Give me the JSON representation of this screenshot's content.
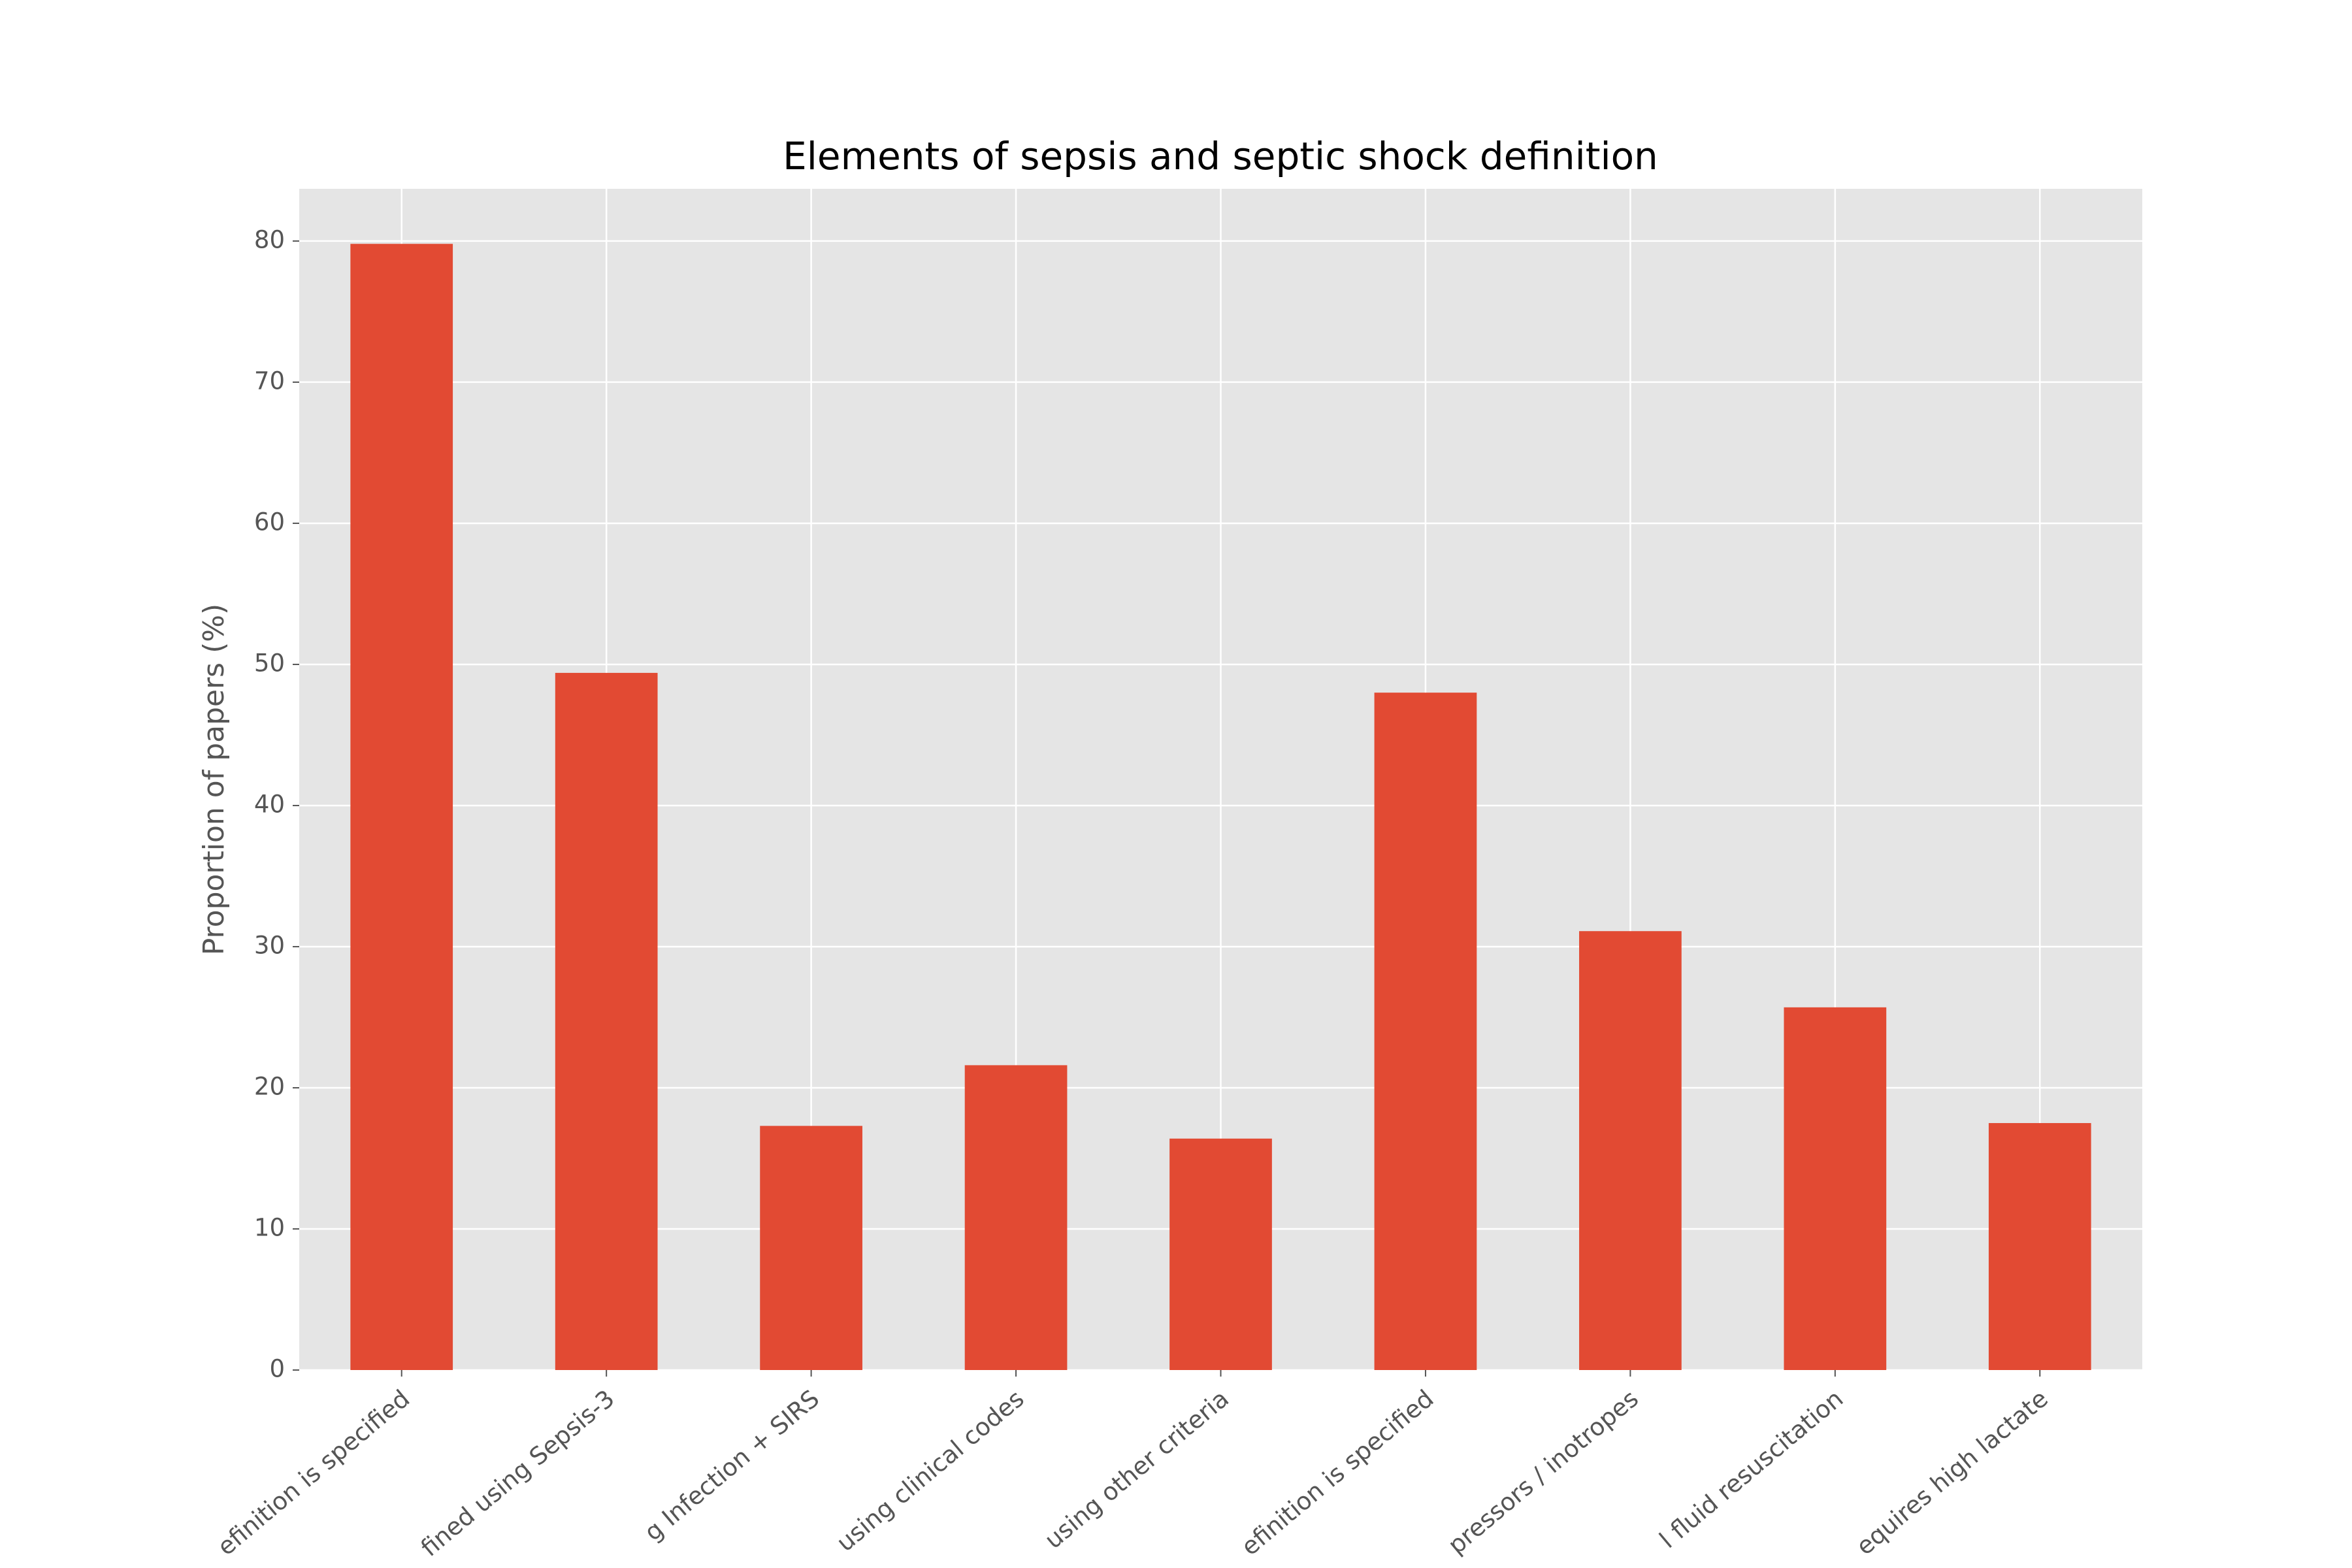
{
  "chart_data": {
    "type": "bar",
    "title": "Elements of sepsis and septic shock definition",
    "y_label": "Proportion of papers (%)",
    "categories": [
      "efinition is specified",
      "fined using Sepsis-3",
      "g Infection + SIRS",
      "using clinical codes",
      "using other criteria",
      "efinition is specified",
      "pressors / inotropes",
      "l fluid resuscitation",
      "equires high lactate"
    ],
    "values": [
      79.8,
      49.4,
      17.3,
      21.6,
      16.4,
      48.0,
      31.1,
      25.7,
      17.5
    ],
    "color": "#E24A33",
    "ylim": [
      0,
      83.7
    ],
    "yticks": [
      0,
      10,
      20,
      30,
      40,
      50,
      60,
      70,
      80
    ],
    "grid": true
  }
}
